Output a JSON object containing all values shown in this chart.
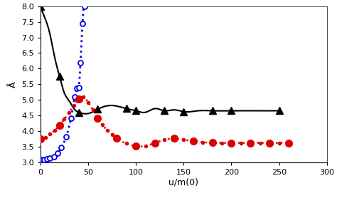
{
  "title": "",
  "xlabel": "u/m(0)",
  "ylabel": "Å",
  "xlim": [
    0,
    300
  ],
  "ylim": [
    3.0,
    8.0
  ],
  "xticks": [
    0,
    50,
    100,
    150,
    200,
    250,
    300
  ],
  "yticks": [
    3.0,
    3.5,
    4.0,
    4.5,
    5.0,
    5.5,
    6.0,
    6.5,
    7.0,
    7.5,
    8.0
  ],
  "series_31_x": [
    0,
    2,
    4,
    7,
    10,
    14,
    18,
    22,
    27,
    32,
    36,
    38,
    40,
    42,
    44,
    46
  ],
  "series_31_y": [
    3.07,
    3.08,
    3.09,
    3.1,
    3.13,
    3.18,
    3.28,
    3.48,
    3.82,
    4.42,
    5.1,
    5.38,
    5.4,
    6.2,
    7.45,
    8.0
  ],
  "series_38_x": [
    0,
    5,
    10,
    15,
    20,
    25,
    30,
    35,
    40,
    45,
    50,
    55,
    60,
    65,
    70,
    75,
    80,
    90,
    100,
    110,
    120,
    130,
    140,
    150,
    160,
    170,
    180,
    190,
    200,
    210,
    220,
    230,
    240,
    250,
    260
  ],
  "series_38_y": [
    3.75,
    3.8,
    3.9,
    4.02,
    4.18,
    4.38,
    4.6,
    4.82,
    5.02,
    5.1,
    4.92,
    4.68,
    4.42,
    4.2,
    4.02,
    3.88,
    3.76,
    3.6,
    3.52,
    3.52,
    3.62,
    3.72,
    3.76,
    3.72,
    3.68,
    3.64,
    3.63,
    3.62,
    3.62,
    3.62,
    3.62,
    3.62,
    3.62,
    3.62,
    3.62
  ],
  "series_38_big_x": [
    0,
    20,
    40,
    60,
    80,
    100,
    120,
    140,
    160,
    180,
    200,
    220,
    240,
    260
  ],
  "series_80_x": [
    0,
    5,
    10,
    15,
    20,
    25,
    30,
    35,
    40,
    45,
    50,
    60,
    75,
    90,
    100,
    110,
    120,
    130,
    140,
    150,
    165,
    180,
    200,
    220,
    250
  ],
  "series_80_y": [
    8.0,
    7.6,
    7.1,
    6.35,
    5.75,
    5.22,
    4.97,
    4.72,
    4.6,
    4.56,
    4.56,
    4.7,
    4.82,
    4.72,
    4.65,
    4.6,
    4.72,
    4.65,
    4.68,
    4.62,
    4.65,
    4.65,
    4.65,
    4.65,
    4.65
  ],
  "series_80_marker_x": [
    0,
    20,
    40,
    60,
    90,
    100,
    130,
    150,
    180,
    200,
    250
  ],
  "bg_color": "#ffffff",
  "line_color_31": "#0000ee",
  "line_color_38": "#dd0000",
  "line_color_80": "#000000"
}
